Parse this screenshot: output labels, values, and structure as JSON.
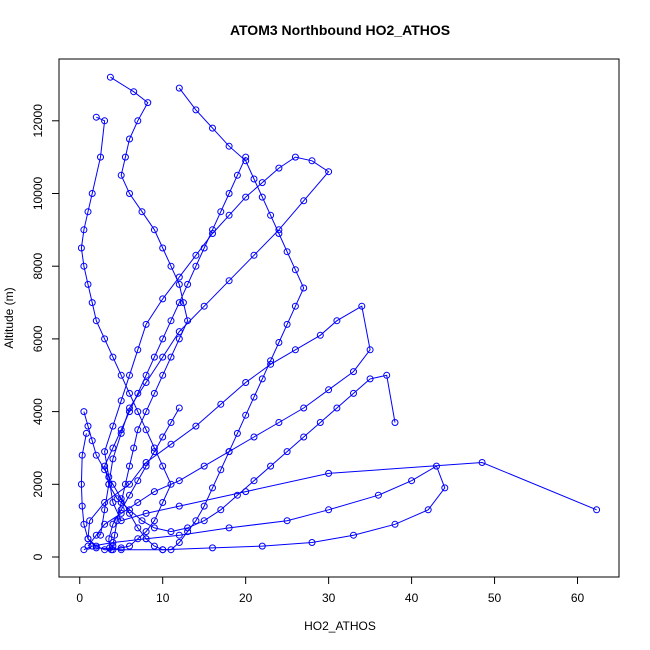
{
  "chart_data": {
    "type": "scatter",
    "title": "ATOM3 Northbound HO2_ATHOS",
    "xlabel": "HO2_ATHOS",
    "ylabel": "Altitude (m)",
    "xlim": [
      -2.5,
      65
    ],
    "ylim": [
      -550,
      13700
    ],
    "x_ticks": [
      0,
      10,
      20,
      30,
      40,
      50,
      60
    ],
    "y_ticks": [
      0,
      2000,
      4000,
      6000,
      8000,
      10000,
      12000
    ],
    "grid": false,
    "legend": "none",
    "color": "#0000ff",
    "series": [
      {
        "style": "lines+points",
        "x": [
          0.5,
          1.5,
          4,
          8,
          12,
          18,
          25,
          30,
          36,
          40,
          43,
          44,
          42,
          38,
          33,
          28,
          22,
          16,
          10,
          5,
          2,
          1,
          1.2,
          3,
          6,
          8,
          11,
          14,
          17,
          20,
          23,
          26,
          29,
          31,
          34,
          35,
          33,
          30,
          27,
          24,
          21,
          18,
          15,
          12,
          9,
          7,
          5,
          3,
          2,
          1
        ],
        "y": [
          200,
          300,
          400,
          500,
          600,
          800,
          1000,
          1300,
          1700,
          2100,
          2500,
          1900,
          1300,
          900,
          600,
          400,
          300,
          250,
          200,
          200,
          250,
          500,
          1000,
          1500,
          2000,
          2600,
          3100,
          3600,
          4200,
          4800,
          5300,
          5700,
          6100,
          6500,
          6900,
          5700,
          5100,
          4600,
          4100,
          3700,
          3300,
          2900,
          2500,
          2100,
          1800,
          1500,
          1200,
          900,
          600,
          300
        ]
      },
      {
        "style": "lines+points",
        "x": [
          62.3,
          48.5,
          30,
          20,
          12,
          8,
          5,
          4,
          3.5,
          3,
          4,
          5,
          6,
          7,
          8,
          10,
          12,
          14,
          16,
          18,
          20,
          22,
          24,
          26,
          28,
          30,
          27,
          24,
          21,
          18,
          15,
          12,
          10,
          8,
          6,
          5,
          4,
          3.5,
          3,
          2.5
        ],
        "y": [
          1300,
          2600,
          2300,
          1800,
          1400,
          1200,
          1000,
          1500,
          2200,
          2900,
          3600,
          4300,
          5000,
          5700,
          6400,
          7100,
          7700,
          8300,
          8900,
          9400,
          9900,
          10300,
          10700,
          11000,
          10900,
          10600,
          9800,
          9000,
          8300,
          7600,
          6900,
          6200,
          5500,
          4800,
          4100,
          3400,
          2700,
          2000,
          1300,
          600
        ]
      },
      {
        "style": "lines+points",
        "x": [
          3.7,
          6.5,
          8.2,
          7,
          6,
          5.5,
          5,
          6,
          7.5,
          9,
          10,
          11,
          12,
          12.5,
          13,
          12,
          11,
          10,
          9,
          8,
          7,
          6.5,
          6,
          5.5,
          5,
          4.5,
          4.2,
          4,
          3.8,
          3.6,
          3.5,
          4,
          5,
          6,
          7,
          8,
          9,
          10,
          11,
          12
        ],
        "y": [
          13200,
          12800,
          12500,
          12000,
          11500,
          11000,
          10500,
          10000,
          9500,
          9000,
          8500,
          8000,
          7500,
          7000,
          6500,
          6000,
          5500,
          5000,
          4500,
          4000,
          3500,
          3000,
          2500,
          2000,
          1500,
          1000,
          600,
          300,
          200,
          250,
          500,
          900,
          1300,
          1700,
          2100,
          2500,
          2900,
          3300,
          3700,
          4100
        ]
      },
      {
        "style": "lines+points",
        "x": [
          12,
          14,
          16,
          18,
          20,
          21,
          22,
          23,
          24,
          25,
          26,
          27,
          26,
          25,
          24,
          23,
          22,
          21,
          20,
          19,
          18,
          17,
          16,
          15,
          14,
          13,
          12,
          11,
          10,
          9,
          8,
          7,
          6,
          5,
          4,
          3,
          2,
          1.5,
          1,
          0.5
        ],
        "y": [
          12900,
          12300,
          11800,
          11300,
          10900,
          10400,
          9900,
          9400,
          8900,
          8400,
          7900,
          7400,
          6900,
          6400,
          5900,
          5400,
          4900,
          4400,
          3900,
          3400,
          2900,
          2400,
          1900,
          1400,
          1000,
          700,
          400,
          200,
          200,
          300,
          500,
          800,
          1200,
          1600,
          2000,
          2400,
          2800,
          3200,
          3600,
          4000
        ]
      },
      {
        "style": "lines+points",
        "x": [
          2,
          3,
          2.5,
          1.5,
          1,
          0.5,
          0.2,
          0.5,
          1,
          1.5,
          2,
          3,
          4,
          5,
          6,
          7,
          8,
          9,
          10,
          11,
          10,
          9,
          8,
          7,
          6,
          5,
          4,
          3,
          2,
          1,
          0.5,
          0.3,
          0.2,
          0.3,
          0.8
        ],
        "y": [
          12100,
          12000,
          11000,
          10000,
          9500,
          9000,
          8500,
          8000,
          7500,
          7000,
          6500,
          6000,
          5500,
          5000,
          4500,
          4000,
          3500,
          3000,
          2500,
          2000,
          1500,
          1000,
          700,
          500,
          300,
          250,
          200,
          200,
          300,
          500,
          900,
          1400,
          2000,
          2800,
          3400
        ]
      },
      {
        "style": "lines+points",
        "x": [
          20,
          19,
          18,
          17,
          16,
          15,
          14,
          13,
          12,
          11,
          10,
          9,
          8,
          7,
          6,
          5,
          4,
          3,
          3.5,
          4.5,
          6,
          7.5,
          9,
          11,
          13,
          15,
          17,
          19,
          21,
          23,
          25,
          27,
          29,
          31,
          33,
          35,
          37,
          38
        ],
        "y": [
          11000,
          10500,
          10000,
          9500,
          9000,
          8500,
          8000,
          7500,
          7000,
          6500,
          6000,
          5500,
          5000,
          4500,
          4000,
          3500,
          3000,
          2500,
          2000,
          1600,
          1300,
          1000,
          800,
          700,
          800,
          1000,
          1300,
          1700,
          2100,
          2500,
          2900,
          3300,
          3700,
          4100,
          4500,
          4900,
          5000,
          3700
        ]
      }
    ]
  }
}
